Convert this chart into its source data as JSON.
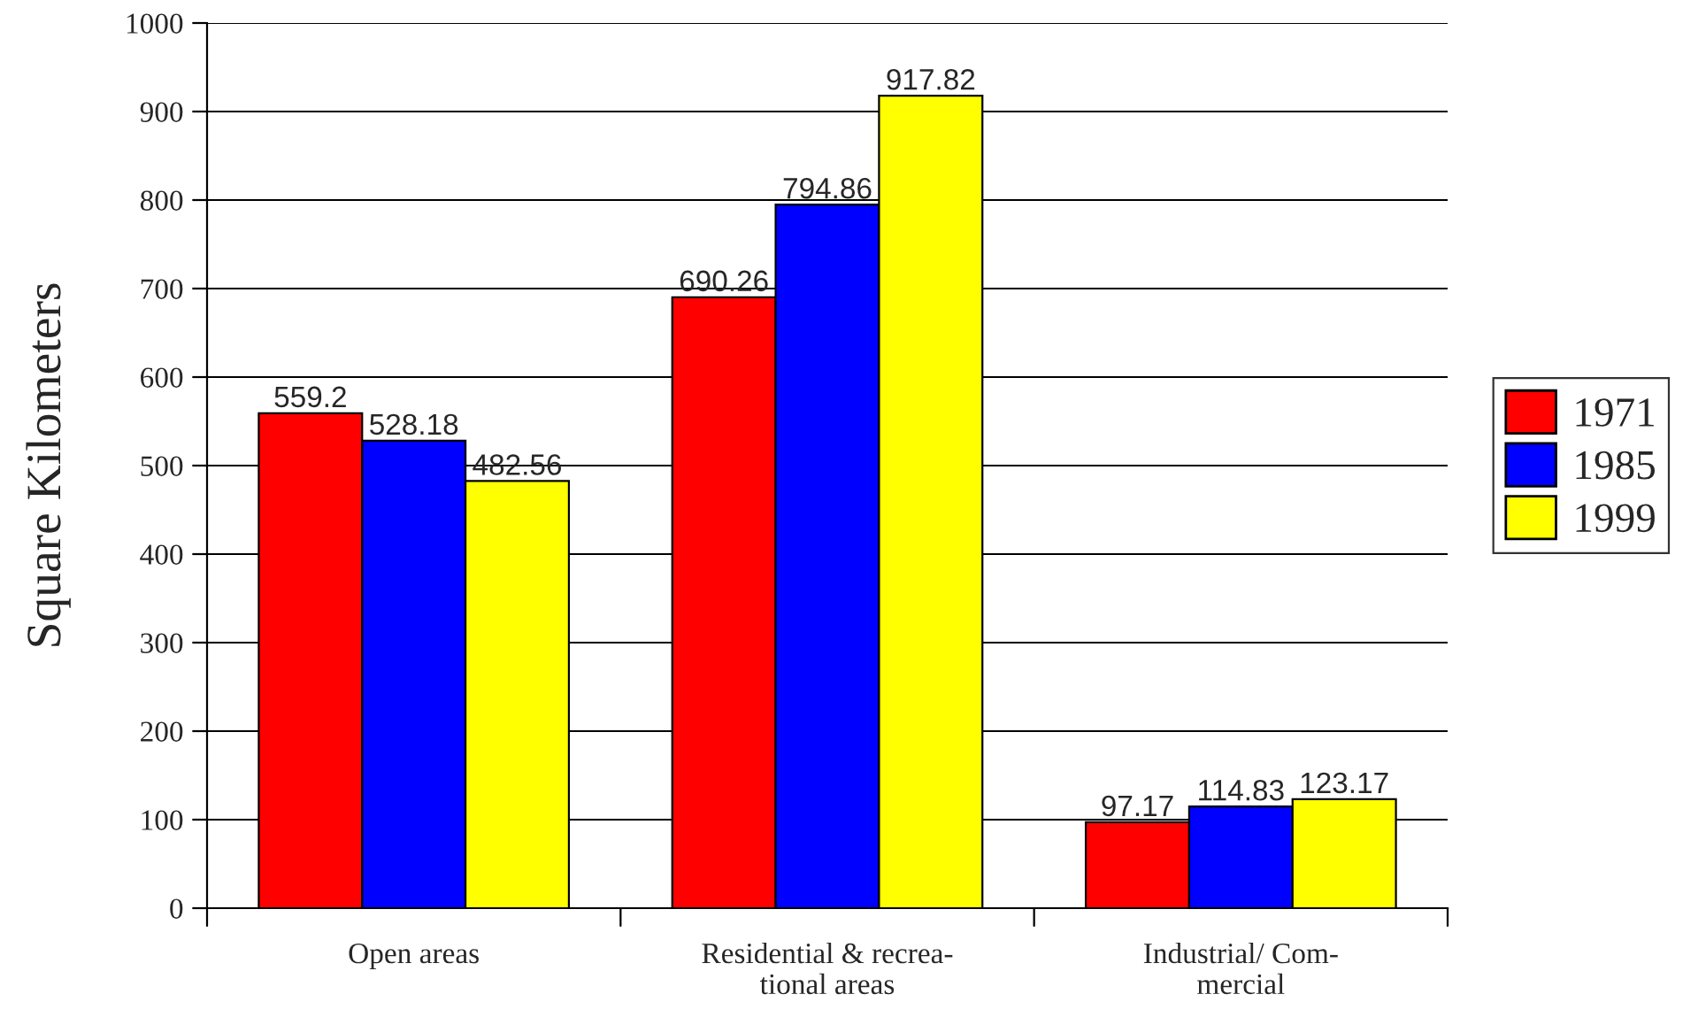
{
  "chart_data": {
    "type": "bar",
    "ylabel": "Square Kilometers",
    "categories": [
      "Open areas",
      "Residential & recrea-\ntional areas",
      "Industrial/ Com-\nmercial"
    ],
    "series": [
      {
        "name": "1971",
        "color": "#ff0000",
        "values": [
          559.2,
          690.26,
          97.17
        ]
      },
      {
        "name": "1985",
        "color": "#0000ff",
        "values": [
          528.18,
          794.86,
          114.83
        ]
      },
      {
        "name": "1999",
        "color": "#ffff00",
        "values": [
          482.56,
          917.82,
          123.17
        ]
      }
    ],
    "ylim": [
      0,
      1000
    ],
    "yticks": [
      0,
      100,
      200,
      300,
      400,
      500,
      600,
      700,
      800,
      900,
      1000
    ],
    "grid": "y",
    "legend": "right",
    "data_labels": true
  }
}
